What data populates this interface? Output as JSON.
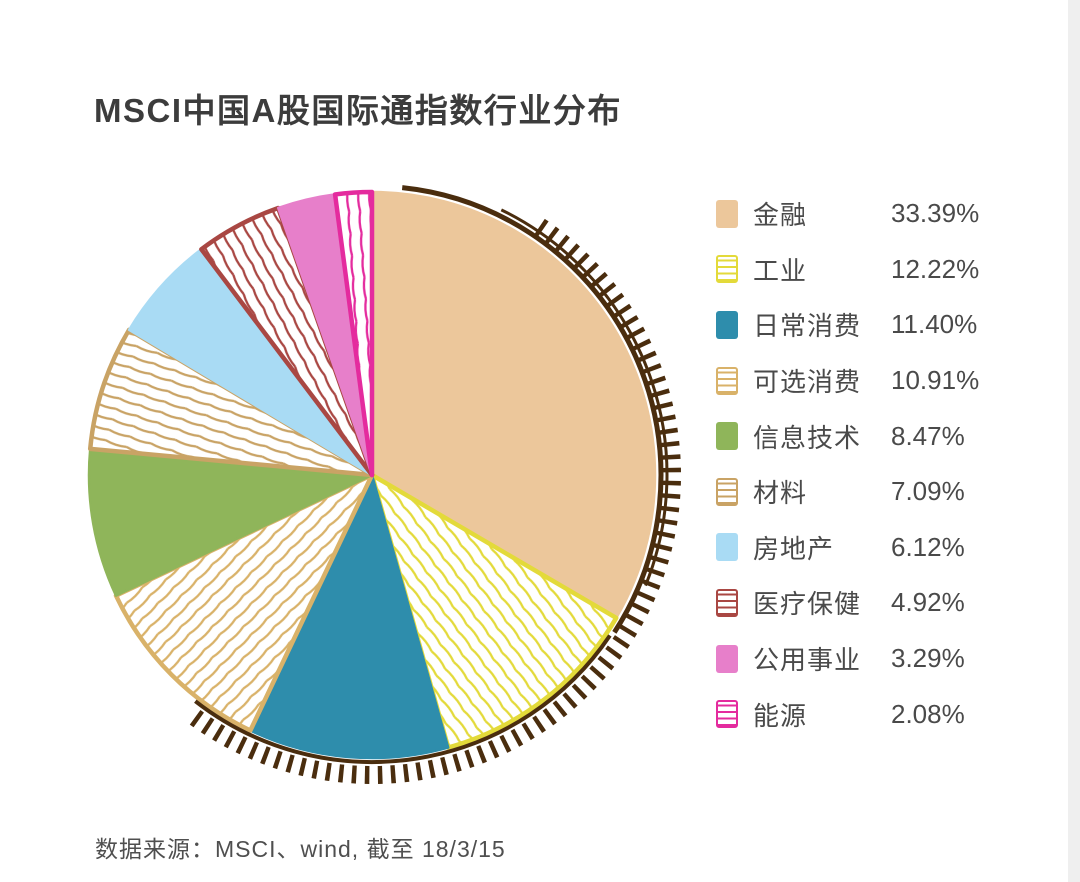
{
  "title": "MSCI中国A股国际通指数行业分布",
  "source": "数据来源：MSCI、wind, 截至 18/3/15",
  "chart_data": {
    "type": "pie",
    "title": "MSCI中国A股国际通指数行业分布",
    "start_angle_deg": 0,
    "direction": "clockwise",
    "legend_position": "right",
    "grid": false,
    "edge_color": "#4a2d0e",
    "background_color": "#ffffff",
    "slices": [
      {
        "label": "金融",
        "value": 33.39,
        "display": "33.39%",
        "color": "#ecc79b",
        "style": "solid"
      },
      {
        "label": "工业",
        "value": 12.22,
        "display": "12.22%",
        "color": "#e3da3a",
        "style": "hatched"
      },
      {
        "label": "日常消费",
        "value": 11.4,
        "display": "11.40%",
        "color": "#2e8dac",
        "style": "solid"
      },
      {
        "label": "可选消费",
        "value": 10.91,
        "display": "10.91%",
        "color": "#d9b269",
        "style": "hatched"
      },
      {
        "label": "信息技术",
        "value": 8.47,
        "display": "8.47%",
        "color": "#8fb55a",
        "style": "solid"
      },
      {
        "label": "材料",
        "value": 7.09,
        "display": "7.09%",
        "color": "#c9a365",
        "style": "hatched"
      },
      {
        "label": "房地产",
        "value": 6.12,
        "display": "6.12%",
        "color": "#a9dbf4",
        "style": "solid"
      },
      {
        "label": "医疗保健",
        "value": 4.92,
        "display": "4.92%",
        "color": "#a94743",
        "style": "hatched"
      },
      {
        "label": "公用事业",
        "value": 3.29,
        "display": "3.29%",
        "color": "#e77fca",
        "style": "solid"
      },
      {
        "label": "能源",
        "value": 2.08,
        "display": "2.08%",
        "color": "#e42b9e",
        "style": "hatched"
      }
    ]
  }
}
